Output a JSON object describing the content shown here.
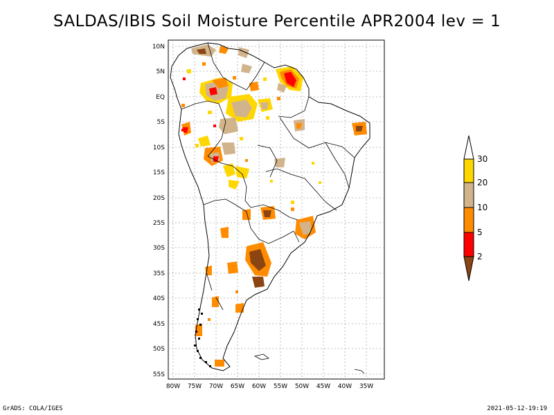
{
  "title": "SALDAS/IBIS Soil Moisture Percentile APR2004 lev = 1",
  "footer": {
    "left": "GrADS: COLA/IGES",
    "right": "2021-05-12-19:19"
  },
  "map": {
    "lat_labels": [
      "10N",
      "5N",
      "EQ",
      "5S",
      "10S",
      "15S",
      "20S",
      "25S",
      "30S",
      "35S",
      "40S",
      "45S",
      "50S",
      "55S"
    ],
    "lon_labels": [
      "80W",
      "75W",
      "70W",
      "65W",
      "60W",
      "55W",
      "50W",
      "45W",
      "40W",
      "35W"
    ]
  },
  "legend": {
    "labels": [
      "2",
      "5",
      "10",
      "20",
      "30"
    ],
    "colors": {
      "brown": "#8b4513",
      "red": "#ff0000",
      "orange": "#ff8c00",
      "tan": "#d2b48c",
      "gold": "#ffd700",
      "white": "#ffffff"
    }
  }
}
